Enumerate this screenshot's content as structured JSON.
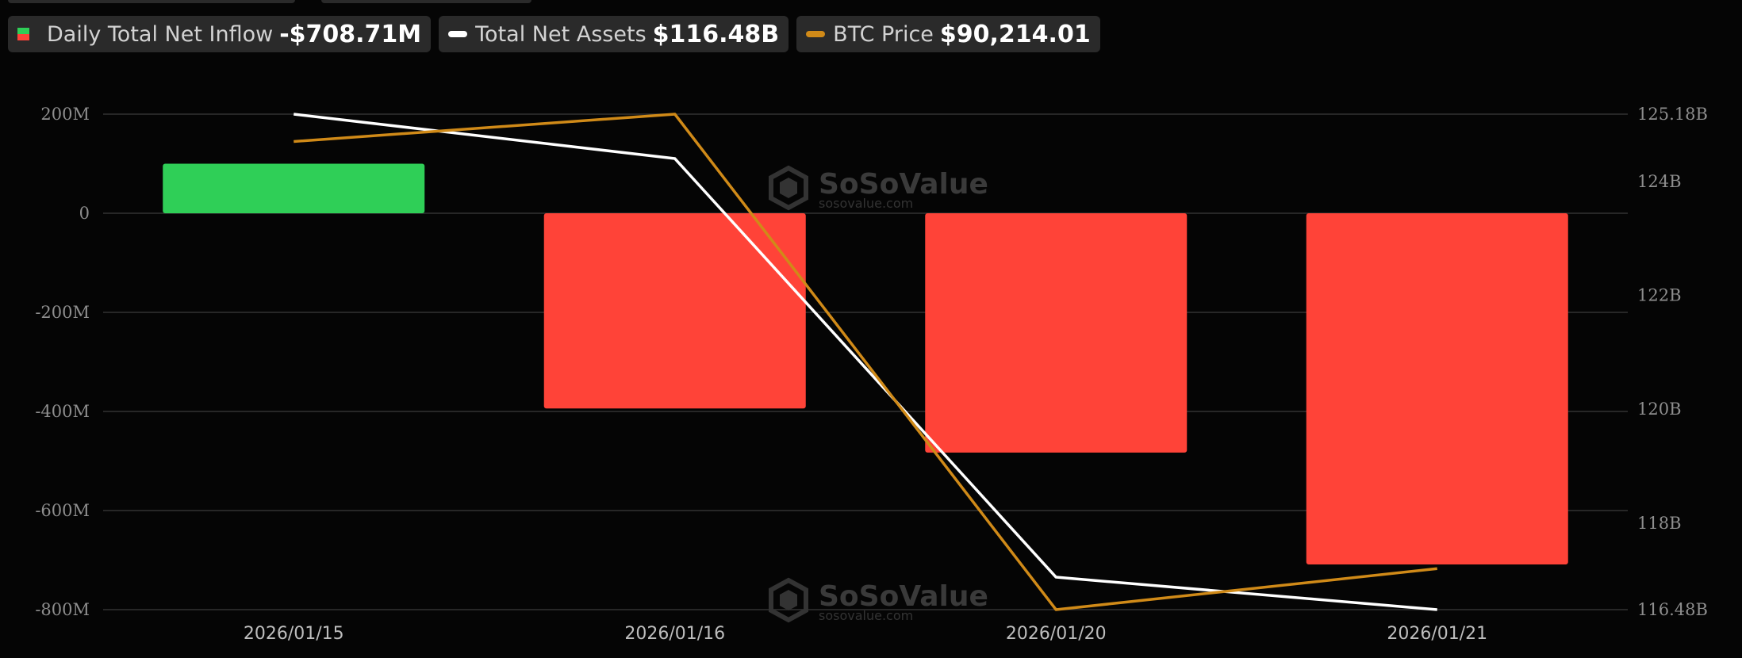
{
  "legend": {
    "inflow": {
      "label": "Daily Total Net Inflow",
      "value": "-$708.71M"
    },
    "assets": {
      "label": "Total Net Assets",
      "value": "$116.48B"
    },
    "btc": {
      "label": "BTC Price",
      "value": "$90,214.01"
    }
  },
  "watermark": {
    "brand": "SoSoValue",
    "url": "sosovalue.com"
  },
  "colors": {
    "positive": "#2fcf57",
    "negative": "#ff4338",
    "assets_line": "#ffffff",
    "btc_line": "#d08a18",
    "grid": "#333333",
    "background": "#050505"
  },
  "chart_data": {
    "type": "bar",
    "title": "",
    "xlabel": "",
    "ylabel": "",
    "categories": [
      "2026/01/15",
      "2026/01/16",
      "2026/01/20",
      "2026/01/21"
    ],
    "y_left": {
      "ticks": [
        200,
        0,
        -200,
        -400,
        -600,
        -800
      ],
      "tick_labels": [
        "200M",
        "0",
        "-200M",
        "-400M",
        "-600M",
        "-800M"
      ],
      "ylim": [
        -800,
        200
      ],
      "unit": "M"
    },
    "y_right": {
      "ticks": [
        125.18,
        124,
        122,
        120,
        118,
        116.48
      ],
      "tick_labels": [
        "125.18B",
        "124B",
        "122B",
        "120B",
        "118B",
        "116.48B"
      ],
      "ylim": [
        116.48,
        125.18
      ],
      "unit": "B"
    },
    "series": [
      {
        "name": "Daily Total Net Inflow",
        "type": "bar",
        "axis": "left",
        "values": [
          100,
          -394,
          -483,
          -708.71
        ]
      },
      {
        "name": "Total Net Assets",
        "type": "line",
        "axis": "right",
        "values": [
          125.18,
          124.4,
          117.05,
          116.48
        ]
      },
      {
        "name": "BTC Price",
        "type": "line",
        "axis": "right",
        "values": [
          124.7,
          125.18,
          116.48,
          117.2
        ]
      }
    ],
    "grid": true,
    "legend_position": "top-left"
  }
}
